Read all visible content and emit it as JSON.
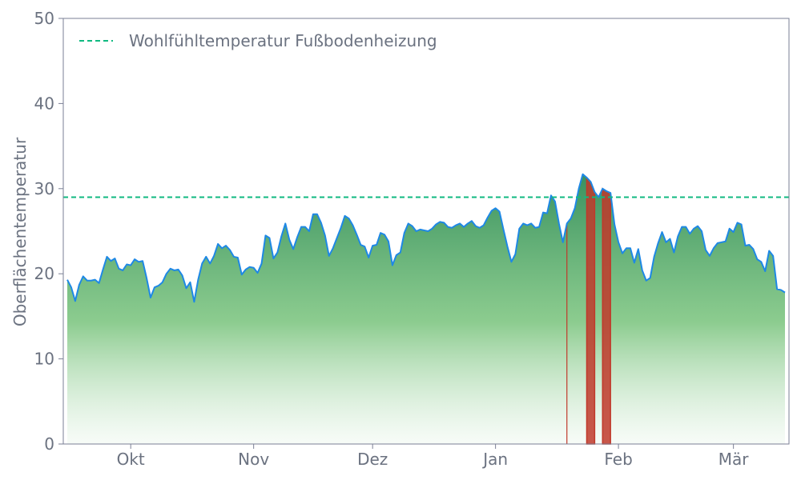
{
  "chart_data": {
    "type": "area",
    "ylabel": "Oberflächentemperatur",
    "xlabel": "",
    "ylim": [
      0,
      50
    ],
    "yticks": [
      0,
      10,
      20,
      30,
      40,
      50
    ],
    "grid": false,
    "legend_position": "top-left",
    "x_start": "2023-09-15",
    "x_end": "2024-03-13",
    "month_ticks": [
      {
        "label": "Okt",
        "date": "2023-10-01"
      },
      {
        "label": "Nov",
        "date": "2023-11-01"
      },
      {
        "label": "Dez",
        "date": "2023-12-01"
      },
      {
        "label": "Jan",
        "date": "2024-01-01"
      },
      {
        "label": "Feb",
        "date": "2024-02-01"
      },
      {
        "label": "Mär",
        "date": "2024-03-01"
      }
    ],
    "reference_line": {
      "name": "Wohlfühltemperatur Fußbodenheizung",
      "value": 29,
      "color": "#10b981"
    },
    "series": [
      {
        "color": "#1e88e5",
        "values": [
          19.3,
          18.4,
          16.8,
          18.7,
          19.7,
          19.2,
          19.2,
          19.3,
          18.9,
          20.5,
          22.0,
          21.5,
          21.8,
          20.6,
          20.4,
          21.1,
          21.0,
          21.7,
          21.4,
          21.5,
          19.5,
          17.2,
          18.4,
          18.6,
          19.0,
          20.0,
          20.6,
          20.4,
          20.5,
          19.8,
          18.3,
          19.0,
          16.7,
          19.3,
          21.2,
          22.0,
          21.2,
          22.1,
          23.5,
          23.0,
          23.3,
          22.8,
          22.0,
          21.9,
          19.9,
          20.5,
          20.8,
          20.7,
          20.1,
          21.2,
          24.5,
          24.2,
          21.8,
          22.5,
          24.4,
          25.9,
          24.0,
          22.9,
          24.3,
          25.5,
          25.5,
          25.0,
          27.0,
          27.0,
          26.0,
          24.5,
          22.1,
          23.0,
          24.2,
          25.4,
          26.8,
          26.5,
          25.7,
          24.6,
          23.4,
          23.2,
          21.9,
          23.3,
          23.4,
          24.8,
          24.6,
          23.8,
          21.0,
          22.2,
          22.5,
          24.8,
          25.9,
          25.6,
          25.0,
          25.2,
          25.1,
          25.0,
          25.3,
          25.8,
          26.1,
          26.0,
          25.5,
          25.4,
          25.7,
          25.9,
          25.5,
          25.9,
          26.2,
          25.6,
          25.4,
          25.7,
          26.6,
          27.4,
          27.7,
          27.3,
          25.2,
          23.2,
          21.4,
          22.3,
          25.3,
          25.9,
          25.7,
          25.9,
          25.4,
          25.5,
          27.2,
          27.1,
          29.2,
          28.5,
          25.9,
          23.7,
          25.9,
          26.5,
          27.7,
          30.0,
          31.7,
          31.3,
          30.8,
          29.6,
          29.0,
          30.0,
          29.7,
          29.5,
          25.8,
          23.7,
          22.4,
          23.0,
          23.0,
          21.3,
          22.9,
          20.4,
          19.2,
          19.5,
          22.0,
          23.6,
          24.9,
          23.7,
          24.1,
          22.5,
          24.4,
          25.5,
          25.5,
          24.7,
          25.3,
          25.6,
          25.0,
          22.8,
          22.1,
          23.0,
          23.6,
          23.7,
          23.8,
          25.3,
          24.9,
          26.0,
          25.8,
          23.3,
          23.4,
          22.9,
          21.7,
          21.4,
          20.3,
          22.7,
          22.1,
          18.2,
          18.1,
          17.8
        ]
      }
    ],
    "highlight_color": "#c0392b",
    "highlight_ranges": [
      {
        "start_index": 126,
        "end_index": 126
      },
      {
        "start_index": 131,
        "end_index": 133
      },
      {
        "start_index": 135,
        "end_index": 137
      }
    ]
  }
}
